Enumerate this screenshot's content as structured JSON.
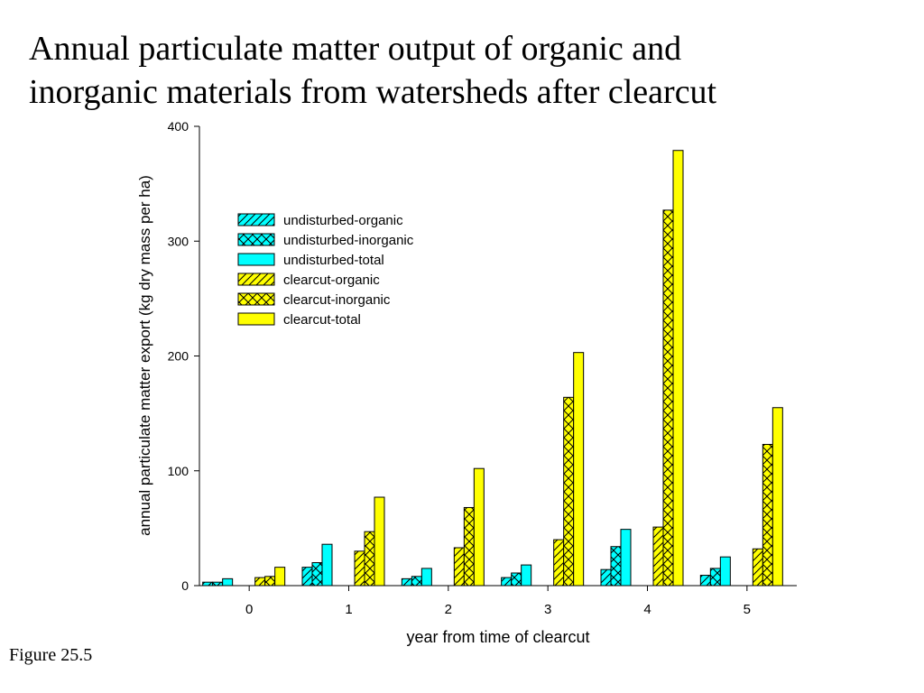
{
  "slide": {
    "title_line1": "Annual particulate matter output of organic and",
    "title_line2": "inorganic materials from watersheds after clearcut",
    "caption": "Figure 25.5"
  },
  "colors": {
    "undisturbed": "#00ffff",
    "clearcut": "#ffff00",
    "outline": "#000000"
  },
  "chart_data": {
    "type": "bar",
    "title": "",
    "xlabel": "year from time of clearcut",
    "ylabel": "annual particulate matter export (kg dry mass per ha)",
    "categories": [
      "0",
      "1",
      "2",
      "3",
      "4",
      "5"
    ],
    "ylim": [
      0,
      400
    ],
    "yticks": [
      0,
      100,
      200,
      300,
      400
    ],
    "grid": false,
    "legend_position": "upper-left",
    "series": [
      {
        "name": "undisturbed-organic",
        "color": "undisturbed",
        "pattern": "hatch-diagonal",
        "values": [
          3,
          16,
          6,
          7,
          14,
          9
        ]
      },
      {
        "name": "undisturbed-inorganic",
        "color": "undisturbed",
        "pattern": "hatch-cross",
        "values": [
          3,
          20,
          8,
          11,
          34,
          15
        ]
      },
      {
        "name": "undisturbed-total",
        "color": "undisturbed",
        "pattern": "solid",
        "values": [
          6,
          36,
          15,
          18,
          49,
          25
        ]
      },
      {
        "name": "clearcut-organic",
        "color": "clearcut",
        "pattern": "hatch-diagonal",
        "values": [
          7,
          30,
          33,
          40,
          51,
          32
        ]
      },
      {
        "name": "clearcut-inorganic",
        "color": "clearcut",
        "pattern": "hatch-cross",
        "values": [
          8,
          47,
          68,
          164,
          327,
          123
        ]
      },
      {
        "name": "clearcut-total",
        "color": "clearcut",
        "pattern": "solid",
        "values": [
          16,
          77,
          102,
          203,
          379,
          155
        ]
      }
    ]
  }
}
